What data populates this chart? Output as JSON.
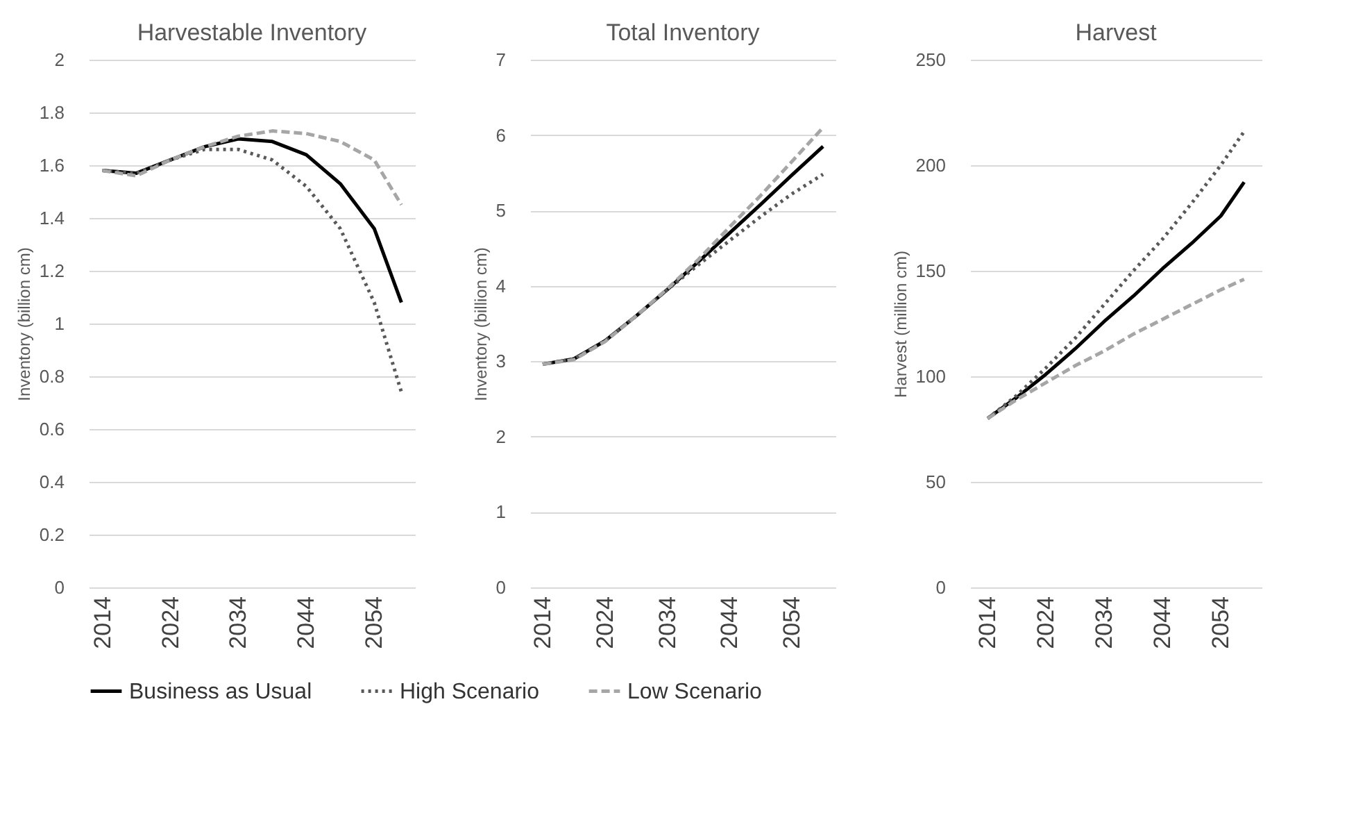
{
  "chart_data": [
    {
      "type": "line",
      "title": "Harvestable Inventory",
      "ylabel": "Inventory (billion cm)",
      "x": [
        2014,
        2019,
        2024,
        2029,
        2034,
        2039,
        2044,
        2049,
        2054,
        2058
      ],
      "xlim": [
        2012,
        2060
      ],
      "xticks": [
        2014,
        2024,
        2034,
        2044,
        2054
      ],
      "ylim": [
        0,
        2
      ],
      "yticks": [
        0,
        0.2,
        0.4,
        0.6,
        0.8,
        1,
        1.2,
        1.4,
        1.6,
        1.8,
        2
      ],
      "grid": "y",
      "legend": "bottom",
      "series": [
        {
          "name": "Business as Usual",
          "color": "#000000",
          "line_style": "solid",
          "values": [
            1.58,
            1.57,
            1.62,
            1.67,
            1.7,
            1.69,
            1.64,
            1.53,
            1.36,
            1.08
          ]
        },
        {
          "name": "High Scenario",
          "color": "#595959",
          "line_style": "dotted",
          "values": [
            1.58,
            1.57,
            1.62,
            1.66,
            1.66,
            1.62,
            1.52,
            1.36,
            1.08,
            0.74
          ]
        },
        {
          "name": "Low Scenario",
          "color": "#a6a6a6",
          "line_style": "dashed",
          "values": [
            1.58,
            1.56,
            1.62,
            1.67,
            1.71,
            1.73,
            1.72,
            1.69,
            1.62,
            1.45
          ]
        }
      ]
    },
    {
      "type": "line",
      "title": "Total Inventory",
      "ylabel": "Inventory (billion cm)",
      "x": [
        2014,
        2019,
        2024,
        2029,
        2034,
        2039,
        2044,
        2049,
        2054,
        2059
      ],
      "xlim": [
        2012,
        2061
      ],
      "xticks": [
        2014,
        2024,
        2034,
        2044,
        2054
      ],
      "ylim": [
        0,
        7
      ],
      "yticks": [
        0,
        1,
        2,
        3,
        4,
        5,
        6,
        7
      ],
      "grid": "y",
      "legend": "bottom",
      "series": [
        {
          "name": "Business as Usual",
          "color": "#000000",
          "line_style": "solid",
          "values": [
            2.96,
            3.03,
            3.27,
            3.6,
            3.95,
            4.32,
            4.7,
            5.08,
            5.47,
            5.85
          ]
        },
        {
          "name": "High Scenario",
          "color": "#595959",
          "line_style": "dotted",
          "values": [
            2.96,
            3.03,
            3.27,
            3.6,
            3.95,
            4.28,
            4.6,
            4.92,
            5.22,
            5.48
          ]
        },
        {
          "name": "Low Scenario",
          "color": "#a6a6a6",
          "line_style": "dashed",
          "values": [
            2.96,
            3.02,
            3.26,
            3.6,
            3.96,
            4.35,
            4.78,
            5.2,
            5.65,
            6.1
          ]
        }
      ]
    },
    {
      "type": "line",
      "title": "Harvest",
      "ylabel": "Harvest (million cm)",
      "x": [
        2014,
        2019,
        2024,
        2029,
        2034,
        2039,
        2044,
        2049,
        2054,
        2058
      ],
      "xlim": [
        2011,
        2061
      ],
      "xticks": [
        2014,
        2024,
        2034,
        2044,
        2054
      ],
      "ylim": [
        0,
        250
      ],
      "yticks": [
        0,
        50,
        100,
        150,
        200,
        250
      ],
      "grid": "y",
      "legend": "bottom",
      "series": [
        {
          "name": "Business as Usual",
          "color": "#000000",
          "line_style": "solid",
          "values": [
            80,
            90,
            101,
            113,
            126,
            138,
            151,
            163,
            176,
            192
          ]
        },
        {
          "name": "High Scenario",
          "color": "#595959",
          "line_style": "dotted",
          "values": [
            80,
            91,
            104,
            118,
            134,
            150,
            165,
            182,
            200,
            216
          ]
        },
        {
          "name": "Low Scenario",
          "color": "#a6a6a6",
          "line_style": "dashed",
          "values": [
            80,
            89,
            97,
            105,
            112,
            120,
            127,
            134,
            141,
            146
          ]
        }
      ]
    }
  ]
}
